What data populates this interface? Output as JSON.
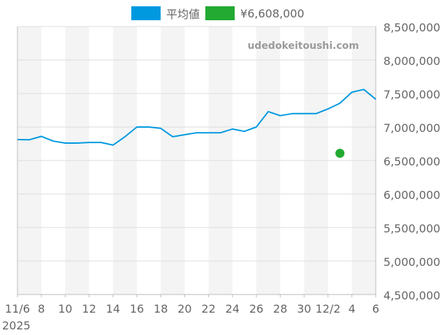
{
  "chart_data": {
    "type": "line",
    "title": "",
    "xlabel": "",
    "ylabel": "",
    "watermark": "udedokeitoushi.com",
    "legend": [
      {
        "label": "平均値",
        "color": "#0099e0"
      },
      {
        "label": "¥6,608,000",
        "color": "#22aa33"
      }
    ],
    "legend_position": "top",
    "ylim": [
      4500000,
      8500000
    ],
    "y_ticks": [
      4500000,
      5000000,
      5500000,
      6000000,
      6500000,
      7000000,
      7500000,
      8000000,
      8500000
    ],
    "y_tick_labels": [
      "4,500,000",
      "5,000,000",
      "5,500,000",
      "6,000,000",
      "6,500,000",
      "7,000,000",
      "7,500,000",
      "8,000,000",
      "8,500,000"
    ],
    "x_tick_labels": [
      "11/6",
      "8",
      "10",
      "12",
      "14",
      "16",
      "18",
      "20",
      "22",
      "24",
      "26",
      "28",
      "30",
      "12/2",
      "4",
      "6"
    ],
    "x_year_label": "2025",
    "grid": true,
    "series": [
      {
        "name": "平均値",
        "color": "#0099e0",
        "x": [
          "11/6",
          "11/7",
          "11/8",
          "11/9",
          "11/10",
          "11/11",
          "11/12",
          "11/13",
          "11/14",
          "11/15",
          "11/16",
          "11/17",
          "11/18",
          "11/19",
          "11/20",
          "11/21",
          "11/22",
          "11/23",
          "11/24",
          "11/25",
          "11/26",
          "11/27",
          "11/28",
          "11/29",
          "11/30",
          "12/1",
          "12/2",
          "12/3",
          "12/4",
          "12/5",
          "12/6"
        ],
        "values": [
          6812000,
          6810000,
          6860000,
          6790000,
          6760000,
          6760000,
          6770000,
          6770000,
          6730000,
          6855000,
          7000000,
          7000000,
          6980000,
          6855000,
          6885000,
          6915000,
          6915000,
          6915000,
          6970000,
          6935000,
          7000000,
          7230000,
          7170000,
          7200000,
          7200000,
          7200000,
          7270000,
          7355000,
          7520000,
          7560000,
          7415000
        ]
      },
      {
        "name": "¥6,608,000",
        "type": "scatter",
        "color": "#22aa33",
        "x": [
          "12/3"
        ],
        "values": [
          6608000
        ]
      }
    ]
  }
}
